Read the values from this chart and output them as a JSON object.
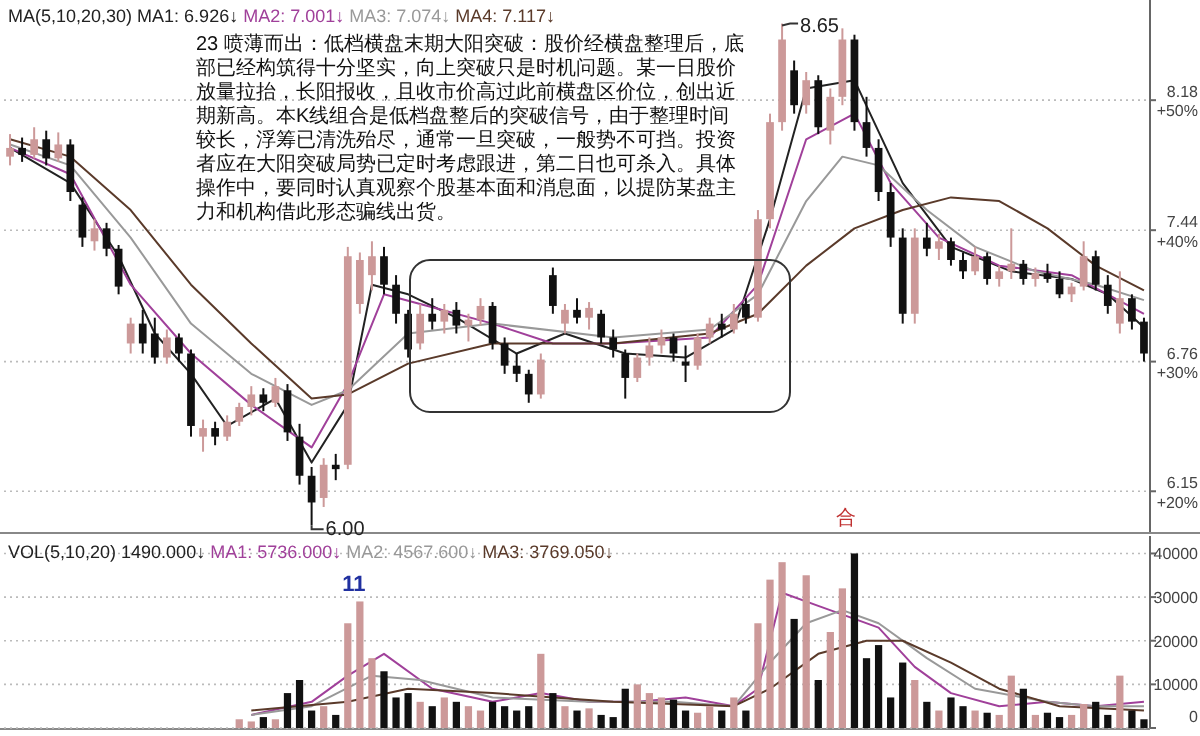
{
  "chart_data": [
    {
      "type": "candlestick",
      "log": true,
      "grid": "y",
      "tick_labels": "y",
      "legend": "top left",
      "legend_title": "MA(5,10,20,30)",
      "categories": [
        null,
        null,
        null,
        null,
        null,
        null,
        null,
        null,
        null,
        null,
        null,
        null,
        null,
        null,
        null,
        null,
        null,
        null,
        null,
        null,
        null,
        null,
        null,
        null,
        null,
        null,
        null,
        null,
        null,
        null,
        null,
        null,
        null,
        null,
        null,
        null,
        null,
        null,
        null,
        null,
        null,
        null,
        null,
        null,
        null,
        null,
        null,
        null,
        null,
        null,
        null,
        null,
        null,
        null,
        null,
        null,
        null,
        null,
        null,
        null,
        null,
        null,
        null,
        null,
        null,
        null,
        null,
        null,
        null,
        null,
        null,
        null,
        null,
        null,
        null,
        null,
        null,
        null,
        null,
        null,
        null,
        null,
        null,
        null,
        null,
        null,
        null,
        null,
        null,
        null,
        null,
        null,
        null,
        null,
        null
      ],
      "ohlc": [
        [
          7.85,
          7.98,
          7.8,
          7.9
        ],
        [
          7.9,
          7.96,
          7.82,
          7.86
        ],
        [
          7.86,
          8.02,
          7.84,
          7.95
        ],
        [
          7.95,
          8.0,
          7.8,
          7.84
        ],
        [
          7.84,
          7.99,
          7.82,
          7.92
        ],
        [
          7.92,
          7.95,
          7.6,
          7.65
        ],
        [
          7.58,
          7.62,
          7.35,
          7.4
        ],
        [
          7.38,
          7.5,
          7.33,
          7.45
        ],
        [
          7.45,
          7.48,
          7.3,
          7.34
        ],
        [
          7.34,
          7.36,
          7.1,
          7.14
        ],
        [
          6.85,
          6.98,
          6.8,
          6.95
        ],
        [
          6.95,
          7.02,
          6.8,
          6.85
        ],
        [
          6.9,
          6.98,
          6.75,
          6.78
        ],
        [
          6.78,
          6.92,
          6.75,
          6.88
        ],
        [
          6.88,
          6.9,
          6.76,
          6.8
        ],
        [
          6.8,
          6.82,
          6.4,
          6.45
        ],
        [
          6.4,
          6.48,
          6.33,
          6.44
        ],
        [
          6.44,
          6.47,
          6.36,
          6.4
        ],
        [
          6.4,
          6.5,
          6.38,
          6.47
        ],
        [
          6.47,
          6.56,
          6.45,
          6.54
        ],
        [
          6.54,
          6.64,
          6.5,
          6.6
        ],
        [
          6.6,
          6.63,
          6.52,
          6.56
        ],
        [
          6.56,
          6.68,
          6.54,
          6.64
        ],
        [
          6.62,
          6.65,
          6.38,
          6.42
        ],
        [
          6.4,
          6.46,
          6.18,
          6.22
        ],
        [
          6.22,
          6.26,
          6.0,
          6.1
        ],
        [
          6.12,
          6.3,
          6.08,
          6.27
        ],
        [
          6.27,
          6.32,
          6.2,
          6.25
        ],
        [
          6.27,
          7.35,
          6.25,
          7.3
        ],
        [
          7.05,
          7.32,
          7.0,
          7.28
        ],
        [
          7.2,
          7.38,
          7.12,
          7.3
        ],
        [
          7.3,
          7.35,
          7.1,
          7.15
        ],
        [
          7.15,
          7.2,
          6.95,
          7.0
        ],
        [
          7.0,
          7.02,
          6.78,
          6.82
        ],
        [
          6.85,
          7.05,
          6.82,
          7.0
        ],
        [
          7.0,
          7.08,
          6.92,
          6.96
        ],
        [
          6.96,
          7.05,
          6.9,
          7.02
        ],
        [
          7.02,
          7.06,
          6.9,
          6.94
        ],
        [
          6.94,
          7.0,
          6.86,
          6.97
        ],
        [
          6.97,
          7.08,
          6.94,
          7.04
        ],
        [
          7.04,
          7.06,
          6.82,
          6.85
        ],
        [
          6.85,
          6.88,
          6.7,
          6.74
        ],
        [
          6.74,
          6.8,
          6.66,
          6.7
        ],
        [
          6.7,
          6.72,
          6.56,
          6.6
        ],
        [
          6.6,
          6.8,
          6.58,
          6.77
        ],
        [
          7.2,
          7.24,
          7.0,
          7.04
        ],
        [
          6.95,
          7.05,
          6.9,
          7.02
        ],
        [
          7.02,
          7.08,
          6.95,
          6.98
        ],
        [
          6.98,
          7.06,
          6.92,
          7.03
        ],
        [
          7.0,
          7.02,
          6.85,
          6.88
        ],
        [
          6.88,
          6.92,
          6.78,
          6.82
        ],
        [
          6.8,
          6.82,
          6.58,
          6.68
        ],
        [
          6.68,
          6.8,
          6.66,
          6.78
        ],
        [
          6.78,
          6.88,
          6.74,
          6.84
        ],
        [
          6.84,
          6.92,
          6.8,
          6.88
        ],
        [
          6.88,
          6.9,
          6.76,
          6.8
        ],
        [
          6.76,
          6.84,
          6.66,
          6.74
        ],
        [
          6.74,
          6.9,
          6.72,
          6.88
        ],
        [
          6.88,
          6.98,
          6.85,
          6.95
        ],
        [
          6.95,
          7.0,
          6.88,
          6.92
        ],
        [
          6.92,
          7.05,
          6.9,
          7.0
        ],
        [
          7.05,
          7.08,
          6.95,
          6.98
        ],
        [
          6.98,
          7.55,
          6.96,
          7.5
        ],
        [
          7.5,
          8.1,
          7.45,
          8.05
        ],
        [
          8.05,
          8.65,
          8.0,
          8.55
        ],
        [
          8.36,
          8.42,
          8.1,
          8.15
        ],
        [
          8.15,
          8.35,
          8.1,
          8.3
        ],
        [
          8.3,
          8.33,
          7.98,
          8.02
        ],
        [
          8.0,
          8.25,
          7.92,
          8.2
        ],
        [
          8.2,
          8.62,
          8.15,
          8.55
        ],
        [
          8.55,
          8.58,
          8.0,
          8.05
        ],
        [
          8.05,
          8.2,
          7.85,
          7.9
        ],
        [
          7.9,
          7.95,
          7.6,
          7.65
        ],
        [
          7.65,
          7.7,
          7.35,
          7.4
        ],
        [
          7.4,
          7.45,
          6.95,
          7.0
        ],
        [
          7.0,
          7.45,
          6.95,
          7.4
        ],
        [
          7.4,
          7.48,
          7.3,
          7.34
        ],
        [
          7.34,
          7.42,
          7.28,
          7.38
        ],
        [
          7.38,
          7.4,
          7.25,
          7.28
        ],
        [
          7.28,
          7.32,
          7.18,
          7.22
        ],
        [
          7.22,
          7.35,
          7.2,
          7.3
        ],
        [
          7.3,
          7.32,
          7.15,
          7.18
        ],
        [
          7.18,
          7.25,
          7.14,
          7.22
        ],
        [
          7.22,
          7.45,
          7.18,
          7.26
        ],
        [
          7.26,
          7.28,
          7.15,
          7.18
        ],
        [
          7.18,
          7.24,
          7.14,
          7.21
        ],
        [
          7.21,
          7.26,
          7.16,
          7.18
        ],
        [
          7.18,
          7.22,
          7.08,
          7.1
        ],
        [
          7.1,
          7.16,
          7.06,
          7.14
        ],
        [
          7.14,
          7.38,
          7.12,
          7.3
        ],
        [
          7.3,
          7.33,
          7.12,
          7.15
        ],
        [
          7.15,
          7.2,
          7.0,
          7.04
        ],
        [
          6.95,
          7.22,
          6.9,
          7.08
        ],
        [
          7.08,
          7.1,
          6.92,
          6.96
        ],
        [
          6.96,
          6.98,
          6.76,
          6.8
        ]
      ],
      "colors": [
        "#cc9999",
        "#111111",
        "#cc9999",
        "#111111",
        "#cc9999",
        "#111111",
        "#111111",
        "#cc9999",
        "#111111",
        "#111111",
        "#cc9999",
        "#111111",
        "#111111",
        "#cc9999",
        "#111111",
        "#111111",
        "#cc9999",
        "#111111",
        "#cc9999",
        "#cc9999",
        "#cc9999",
        "#111111",
        "#cc9999",
        "#111111",
        "#111111",
        "#111111",
        "#cc9999",
        "#111111",
        "#cc9999",
        "#cc9999",
        "#cc9999",
        "#111111",
        "#111111",
        "#111111",
        "#cc9999",
        "#111111",
        "#cc9999",
        "#111111",
        "#cc9999",
        "#cc9999",
        "#111111",
        "#111111",
        "#111111",
        "#111111",
        "#cc9999",
        "#111111",
        "#cc9999",
        "#111111",
        "#cc9999",
        "#111111",
        "#111111",
        "#111111",
        "#cc9999",
        "#cc9999",
        "#cc9999",
        "#111111",
        "#111111",
        "#cc9999",
        "#cc9999",
        "#111111",
        "#cc9999",
        "#111111",
        "#cc9999",
        "#cc9999",
        "#cc9999",
        "#111111",
        "#cc9999",
        "#111111",
        "#cc9999",
        "#cc9999",
        "#111111",
        "#111111",
        "#111111",
        "#111111",
        "#111111",
        "#cc9999",
        "#111111",
        "#cc9999",
        "#111111",
        "#111111",
        "#cc9999",
        "#111111",
        "#cc9999",
        "#cc9999",
        "#111111",
        "#cc9999",
        "#111111",
        "#111111",
        "#cc9999",
        "#cc9999",
        "#111111",
        "#111111",
        "#cc9999",
        "#111111",
        "#111111"
      ],
      "series": [
        {
          "type": "line",
          "name": "MA1: 6.926↓",
          "color": "#222222",
          "values": [
            7.9,
            null,
            null,
            null,
            null,
            7.7,
            null,
            null,
            null,
            7.3,
            null,
            null,
            6.9,
            null,
            null,
            6.7,
            null,
            null,
            6.45,
            null,
            null,
            null,
            6.58,
            null,
            null,
            6.28,
            null,
            null,
            6.55,
            null,
            7.15,
            null,
            null,
            7.1,
            null,
            null,
            null,
            6.98,
            null,
            null,
            null,
            null,
            6.8,
            null,
            null,
            null,
            6.9,
            null,
            null,
            null,
            null,
            6.8,
            null,
            null,
            null,
            null,
            6.78,
            null,
            null,
            null,
            6.92,
            null,
            null,
            7.5,
            null,
            null,
            8.25,
            null,
            null,
            null,
            8.3,
            null,
            null,
            null,
            7.7,
            null,
            null,
            null,
            7.35,
            null,
            null,
            null,
            null,
            7.22,
            null,
            null,
            null,
            null,
            7.18,
            null,
            null,
            7.1,
            null,
            null,
            6.93
          ]
        },
        {
          "type": "line",
          "name": "MA2: 7.001↓",
          "color": "#a0409a",
          "values": [
            7.9,
            null,
            null,
            null,
            null,
            7.75,
            null,
            null,
            null,
            null,
            7.15,
            null,
            null,
            null,
            null,
            6.8,
            null,
            null,
            null,
            null,
            6.55,
            null,
            null,
            null,
            null,
            6.35,
            null,
            null,
            6.65,
            null,
            null,
            7.1,
            null,
            null,
            7.05,
            null,
            null,
            null,
            null,
            null,
            6.95,
            null,
            null,
            null,
            null,
            6.85,
            null,
            null,
            null,
            null,
            6.85,
            null,
            null,
            null,
            null,
            null,
            null,
            null,
            6.88,
            null,
            null,
            null,
            7.15,
            null,
            null,
            null,
            7.95,
            null,
            null,
            null,
            8.1,
            null,
            null,
            7.7,
            null,
            null,
            null,
            7.4,
            null,
            null,
            null,
            null,
            7.25,
            null,
            null,
            null,
            null,
            null,
            7.2,
            null,
            null,
            null,
            null,
            null,
            7.0
          ]
        },
        {
          "type": "line",
          "name": "MA3: 7.074↓",
          "color": "#999999",
          "values": [
            7.92,
            null,
            null,
            null,
            null,
            7.8,
            null,
            null,
            null,
            null,
            7.4,
            null,
            null,
            null,
            null,
            6.95,
            null,
            null,
            null,
            null,
            6.7,
            null,
            null,
            null,
            null,
            6.55,
            null,
            null,
            6.62,
            null,
            null,
            null,
            null,
            6.9,
            null,
            null,
            null,
            null,
            null,
            null,
            6.95,
            null,
            null,
            null,
            null,
            null,
            null,
            null,
            null,
            null,
            6.88,
            null,
            null,
            null,
            null,
            null,
            null,
            null,
            6.92,
            null,
            null,
            null,
            7.1,
            null,
            null,
            null,
            7.6,
            null,
            null,
            7.85,
            null,
            null,
            7.8,
            null,
            null,
            null,
            7.55,
            null,
            null,
            null,
            7.35,
            null,
            null,
            null,
            null,
            7.22,
            null,
            null,
            null,
            null,
            7.15,
            null,
            null,
            null,
            7.07
          ]
        },
        {
          "type": "line",
          "name": "MA4: 7.117↓",
          "color": "#5a3a2a",
          "values": [
            7.95,
            null,
            null,
            null,
            null,
            7.85,
            null,
            null,
            null,
            null,
            7.55,
            null,
            null,
            null,
            null,
            7.15,
            null,
            null,
            null,
            null,
            6.85,
            null,
            null,
            null,
            null,
            6.58,
            null,
            null,
            6.6,
            null,
            null,
            null,
            null,
            6.75,
            null,
            null,
            null,
            null,
            null,
            null,
            6.85,
            null,
            null,
            null,
            null,
            null,
            null,
            null,
            null,
            null,
            6.85,
            null,
            null,
            null,
            null,
            null,
            null,
            null,
            6.9,
            null,
            null,
            null,
            7.0,
            null,
            null,
            null,
            7.25,
            null,
            null,
            null,
            7.45,
            null,
            null,
            null,
            7.55,
            null,
            null,
            null,
            7.62,
            null,
            null,
            null,
            7.6,
            null,
            null,
            null,
            7.45,
            null,
            null,
            null,
            7.25,
            null,
            null,
            null,
            7.12
          ]
        }
      ],
      "ylim": [
        5.97,
        8.8
      ],
      "yticks": [
        6.15,
        6.76,
        7.44,
        8.18
      ],
      "y2lim": [
        16.9,
        57.6
      ],
      "y2ticks": [
        {
          "value": 20,
          "label": "+20%"
        },
        {
          "value": 30,
          "label": "+30%"
        },
        {
          "value": 40,
          "label": "+40%"
        },
        {
          "value": 50,
          "label": "+50%"
        }
      ],
      "annotations": [
        "23 喷薄而出：低档横盘末期大阳突破：股价经横盘整理后，底部已经构筑得十分坚实，向上突破只是时机问题。某一日股价放量拉抬，长阳报收，且收市价高过此前横盘区价位，创出近期新高。本K线组合是低档盘整后的突破信号，由于整理时间较长，浮筹已清洗殆尽，通常一旦突破，一般势不可挡。投资者应在大阳突破局势已定时考虑跟进，第二日也可杀入。具体操作中，要同时认真观察个股基本面和消息面，以提防某盘主力和机构借此形态骗线出货。",
        "合",
        "8.65",
        "6.00"
      ]
    },
    {
      "type": "bar",
      "grid": "y",
      "tick_labels": "y",
      "legend": "top left",
      "legend_title": "VOL(5,10,20) 1490.000↓",
      "categories": [
        null,
        null,
        null,
        null,
        null,
        null,
        null,
        null,
        null,
        null,
        null,
        null,
        null,
        null,
        null,
        null,
        null,
        null,
        null,
        null,
        null,
        null,
        null,
        null,
        null,
        null,
        null,
        null,
        null,
        null,
        null,
        null,
        null,
        null,
        null,
        null,
        null,
        null,
        null,
        null,
        null,
        null,
        null,
        null,
        null,
        null,
        null,
        null,
        null,
        null,
        null,
        null,
        null,
        null,
        null,
        null,
        null,
        null,
        null,
        null,
        null,
        null,
        null,
        null,
        null,
        null,
        null,
        null,
        null,
        null,
        null,
        null,
        null,
        null,
        null,
        null,
        null,
        null,
        null,
        null,
        null,
        null,
        null,
        null,
        null,
        null,
        null,
        null,
        null,
        null,
        null,
        null,
        null,
        null,
        null
      ],
      "series": [
        {
          "values": [
            null,
            null,
            null,
            null,
            null,
            null,
            null,
            null,
            null,
            null,
            null,
            null,
            null,
            null,
            null,
            null,
            null,
            null,
            null,
            2000,
            1500,
            2500,
            2000,
            8000,
            11000,
            4000,
            5000,
            3000,
            24000,
            29000,
            16000,
            13000,
            7000,
            8000,
            6000,
            5000,
            7000,
            6000,
            5000,
            4000,
            6000,
            5000,
            4000,
            5000,
            17000,
            8000,
            5000,
            4000,
            4500,
            3000,
            2500,
            9000,
            10000,
            8000,
            7000,
            6500,
            4000,
            3500,
            5000,
            4000,
            7000,
            4000,
            24000,
            34000,
            38000,
            25000,
            35000,
            11000,
            22000,
            32000,
            40000,
            16000,
            19000,
            7000,
            15000,
            11000,
            6000,
            4000,
            7000,
            5000,
            4000,
            3500,
            3000,
            12000,
            9000,
            3000,
            3500,
            2500,
            3000,
            5500,
            6000,
            3000,
            12000,
            4000,
            2000
          ],
          "colors": [
            null,
            null,
            null,
            null,
            null,
            null,
            null,
            null,
            null,
            null,
            null,
            null,
            null,
            null,
            null,
            null,
            null,
            null,
            null,
            "#cc9999",
            "#cc9999",
            "#111111",
            "#cc9999",
            "#111111",
            "#111111",
            "#111111",
            "#cc9999",
            "#111111",
            "#cc9999",
            "#cc9999",
            "#cc9999",
            "#111111",
            "#111111",
            "#111111",
            "#cc9999",
            "#111111",
            "#cc9999",
            "#111111",
            "#cc9999",
            "#cc9999",
            "#111111",
            "#111111",
            "#111111",
            "#111111",
            "#cc9999",
            "#111111",
            "#cc9999",
            "#111111",
            "#cc9999",
            "#111111",
            "#111111",
            "#111111",
            "#cc9999",
            "#cc9999",
            "#cc9999",
            "#111111",
            "#111111",
            "#cc9999",
            "#cc9999",
            "#111111",
            "#cc9999",
            "#111111",
            "#cc9999",
            "#cc9999",
            "#cc9999",
            "#111111",
            "#cc9999",
            "#111111",
            "#cc9999",
            "#cc9999",
            "#111111",
            "#111111",
            "#111111",
            "#111111",
            "#111111",
            "#cc9999",
            "#111111",
            "#cc9999",
            "#111111",
            "#111111",
            "#cc9999",
            "#111111",
            "#cc9999",
            "#cc9999",
            "#111111",
            "#cc9999",
            "#111111",
            "#111111",
            "#cc9999",
            "#cc9999",
            "#111111",
            "#111111",
            "#cc9999",
            "#111111",
            "#111111"
          ]
        },
        {
          "type": "line",
          "name": "MA1: 5736.000↓",
          "color": "#a0409a",
          "values": [
            null,
            null,
            null,
            null,
            null,
            null,
            null,
            null,
            null,
            null,
            null,
            null,
            null,
            null,
            null,
            null,
            null,
            null,
            null,
            null,
            3000,
            null,
            null,
            null,
            null,
            6000,
            null,
            null,
            12000,
            null,
            null,
            17000,
            null,
            null,
            null,
            9000,
            null,
            null,
            null,
            null,
            6000,
            null,
            null,
            null,
            8000,
            null,
            null,
            null,
            6000,
            null,
            null,
            null,
            6000,
            null,
            null,
            null,
            7000,
            null,
            null,
            null,
            5000,
            null,
            9000,
            null,
            31000,
            null,
            null,
            28000,
            null,
            null,
            25000,
            null,
            23000,
            null,
            null,
            14000,
            null,
            null,
            8000,
            null,
            null,
            null,
            5000,
            null,
            null,
            null,
            6000,
            null,
            null,
            null,
            5000,
            null,
            null,
            null,
            6000
          ]
        },
        {
          "type": "line",
          "name": "MA2: 4567.600↓",
          "color": "#999999",
          "values": [
            null,
            null,
            null,
            null,
            null,
            null,
            null,
            null,
            null,
            null,
            null,
            null,
            null,
            null,
            null,
            null,
            null,
            null,
            null,
            null,
            3000,
            null,
            null,
            null,
            null,
            5000,
            null,
            null,
            null,
            null,
            12000,
            null,
            null,
            null,
            11000,
            null,
            null,
            null,
            null,
            null,
            7000,
            null,
            null,
            null,
            null,
            null,
            null,
            null,
            6000,
            null,
            null,
            null,
            null,
            null,
            null,
            6000,
            null,
            null,
            null,
            null,
            5000,
            null,
            null,
            15000,
            null,
            null,
            24000,
            null,
            null,
            27000,
            null,
            null,
            24000,
            null,
            null,
            null,
            16000,
            null,
            null,
            null,
            9000,
            null,
            null,
            null,
            null,
            null,
            6000,
            null,
            null,
            null,
            5000,
            null,
            null,
            null,
            5000
          ]
        },
        {
          "type": "line",
          "name": "MA3: 3769.050↓",
          "color": "#5a3a2a",
          "values": [
            null,
            null,
            null,
            null,
            null,
            null,
            null,
            null,
            null,
            null,
            null,
            null,
            null,
            null,
            null,
            null,
            null,
            null,
            null,
            null,
            4000,
            null,
            null,
            null,
            null,
            null,
            null,
            null,
            6000,
            null,
            null,
            null,
            null,
            9000,
            null,
            null,
            null,
            null,
            null,
            null,
            8000,
            null,
            null,
            null,
            null,
            null,
            null,
            null,
            null,
            null,
            6000,
            null,
            null,
            null,
            null,
            null,
            null,
            null,
            null,
            null,
            5000,
            null,
            null,
            9000,
            null,
            null,
            null,
            17000,
            null,
            null,
            null,
            20000,
            null,
            null,
            20000,
            null,
            null,
            null,
            15000,
            null,
            null,
            null,
            9000,
            null,
            null,
            null,
            null,
            5000,
            null,
            null,
            null,
            null,
            null,
            null,
            4000
          ]
        }
      ],
      "ylim": [
        0,
        44000
      ],
      "yticks": [
        0,
        10000,
        20000,
        30000,
        40000
      ],
      "annotations": [
        "11"
      ]
    }
  ]
}
